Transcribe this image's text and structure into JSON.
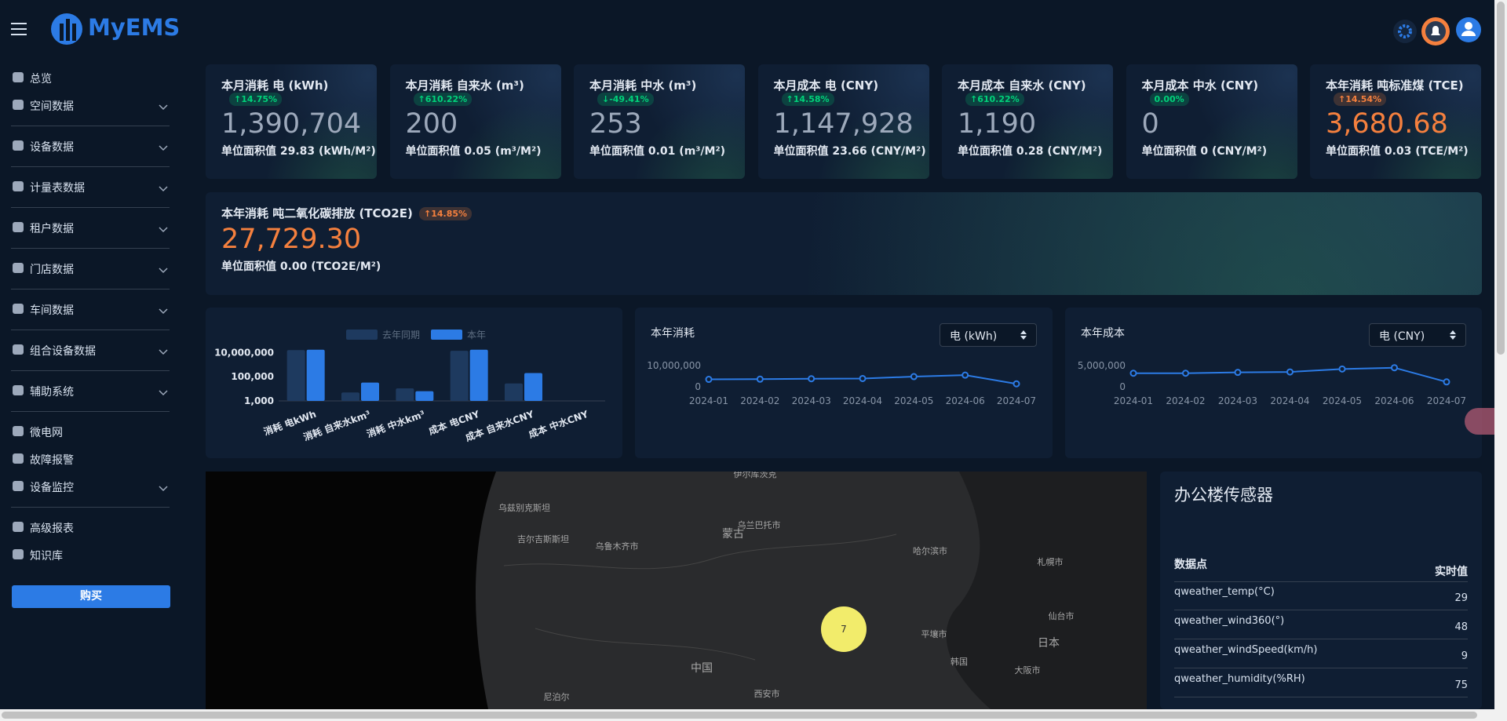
{
  "topbar": {
    "brand": "MyEMS"
  },
  "sidebar": {
    "items": [
      {
        "label": "总览",
        "expandable": false
      },
      {
        "label": "空间数据",
        "expandable": true
      },
      {
        "label": "设备数据",
        "expandable": true
      },
      {
        "label": "计量表数据",
        "expandable": true
      },
      {
        "label": "租户数据",
        "expandable": true
      },
      {
        "label": "门店数据",
        "expandable": true
      },
      {
        "label": "车间数据",
        "expandable": true
      },
      {
        "label": "组合设备数据",
        "expandable": true
      },
      {
        "label": "辅助系统",
        "expandable": true
      },
      {
        "label": "微电网",
        "expandable": false
      },
      {
        "label": "故障报警",
        "expandable": false
      },
      {
        "label": "设备监控",
        "expandable": true
      },
      {
        "label": "高级报表",
        "expandable": false
      },
      {
        "label": "知识库",
        "expandable": false
      }
    ],
    "button": "购买"
  },
  "cards": [
    {
      "title": "本月消耗 电 (kWh)",
      "change": "↑14.75%",
      "value": "1,390,704",
      "per_area": "单位面积值 29.83 (kWh/M²)",
      "value_color": "#9da9bb",
      "badge_color": "#00d27a"
    },
    {
      "title": "本月消耗 自来水 (m³)",
      "change": "↑610.22%",
      "value": "200",
      "per_area": "单位面积值 0.05 (m³/M²)",
      "value_color": "#9da9bb",
      "badge_color": "#00d27a"
    },
    {
      "title": "本月消耗 中水 (m³)",
      "change": "↓-49.41%",
      "value": "253",
      "per_area": "单位面积值 0.01 (m³/M²)",
      "value_color": "#9da9bb",
      "badge_color": "#00d27a"
    },
    {
      "title": "本月成本 电 (CNY)",
      "change": "↑14.58%",
      "value": "1,147,928",
      "per_area": "单位面积值 23.66 (CNY/M²)",
      "value_color": "#9da9bb",
      "badge_color": "#00d27a"
    },
    {
      "title": "本月成本 自来水 (CNY)",
      "change": "↑610.22%",
      "value": "1,190",
      "per_area": "单位面积值 0.28 (CNY/M²)",
      "value_color": "#9da9bb",
      "badge_color": "#00d27a"
    },
    {
      "title": "本月成本 中水 (CNY)",
      "change": "0.00%",
      "value": "0",
      "per_area": "单位面积值 0 (CNY/M²)",
      "value_color": "#9da9bb",
      "badge_color": "#00d27a"
    },
    {
      "title": "本年消耗 吨标准煤 (TCE)",
      "change": "↑14.54%",
      "value": "3,680.68",
      "per_area": "单位面积值 0.03 (TCE/M²)",
      "value_color": "#f5803e",
      "badge_color": "#f5803e"
    }
  ],
  "carbon_card": {
    "title": "本年消耗 吨二氧化碳排放 (TCO2E)",
    "change": "↑14.85%",
    "value": "27,729.30",
    "per_area": "单位面积值 0.00 (TCO2E/M²)",
    "value_color": "#f5803e",
    "badge_color": "#f5803e"
  },
  "chart_data": [
    {
      "type": "bar",
      "log_scale": true,
      "legend": "top",
      "categories": [
        "消耗 电kWh",
        "消耗 自来水km³",
        "消耗 中水km³",
        "成本 电CNY",
        "成本 自来水CNY",
        "成本 中水CNY"
      ],
      "series": [
        {
          "name": "去年同期",
          "color": "#1e3a5f",
          "values": [
            16000000,
            5000,
            11000,
            14000000,
            28000,
            null
          ]
        },
        {
          "name": "本年",
          "color": "#2c7be5",
          "values": [
            17000000,
            33000,
            6300,
            17000000,
            200000,
            null
          ]
        }
      ],
      "ylim": [
        1000,
        30000000
      ],
      "yticks": [
        {
          "value": 1000,
          "label": "1,000"
        },
        {
          "value": 100000,
          "label": "100,000"
        },
        {
          "value": 10000000,
          "label": "10,000,000"
        }
      ]
    },
    {
      "type": "line",
      "title": "本年消耗",
      "selector": "电 (kWh)",
      "categories": [
        "2024-01",
        "2024-02",
        "2024-03",
        "2024-04",
        "2024-05",
        "2024-06",
        "2024-07"
      ],
      "series": [
        {
          "color": "#2c7be5",
          "values": [
            3500000,
            3600000,
            3800000,
            3900000,
            4800000,
            5500000,
            1400000
          ]
        }
      ],
      "ylim": [
        0,
        10000000
      ],
      "yticks": [
        0,
        {
          "value": 10000000,
          "label": "10,000,000"
        }
      ]
    },
    {
      "type": "line",
      "title": "本年成本",
      "selector": "电 (CNY)",
      "categories": [
        "2024-01",
        "2024-02",
        "2024-03",
        "2024-04",
        "2024-05",
        "2024-06",
        "2024-07"
      ],
      "series": [
        {
          "color": "#2c7be5",
          "values": [
            3200000,
            3200000,
            3400000,
            3500000,
            4200000,
            4500000,
            1150000
          ]
        }
      ],
      "ylim": [
        0,
        5000000
      ],
      "yticks": [
        0,
        {
          "value": 5000000,
          "label": "5,000,000"
        }
      ]
    }
  ],
  "map": {
    "labels": [
      "伊尔库茨克",
      "乌兰巴托市",
      "蒙古",
      "乌鲁木齐市",
      "哈尔滨市",
      "中国",
      "平壤市",
      "韩国",
      "日本",
      "大阪市",
      "西安市",
      "尼泊尔",
      "札幌市",
      "仙台市",
      "吉尔吉斯斯坦",
      "乌兹别克斯坦"
    ],
    "cluster": 7
  },
  "sensor": {
    "title": "办公楼传感器",
    "columns": [
      "数据点",
      "实时值"
    ],
    "rows": [
      [
        "qweather_temp(°C)",
        29
      ],
      [
        "qweather_wind360(°)",
        48
      ],
      [
        "qweather_windSpeed(km/h)",
        9
      ],
      [
        "qweather_humidity(%RH)",
        75
      ]
    ]
  }
}
